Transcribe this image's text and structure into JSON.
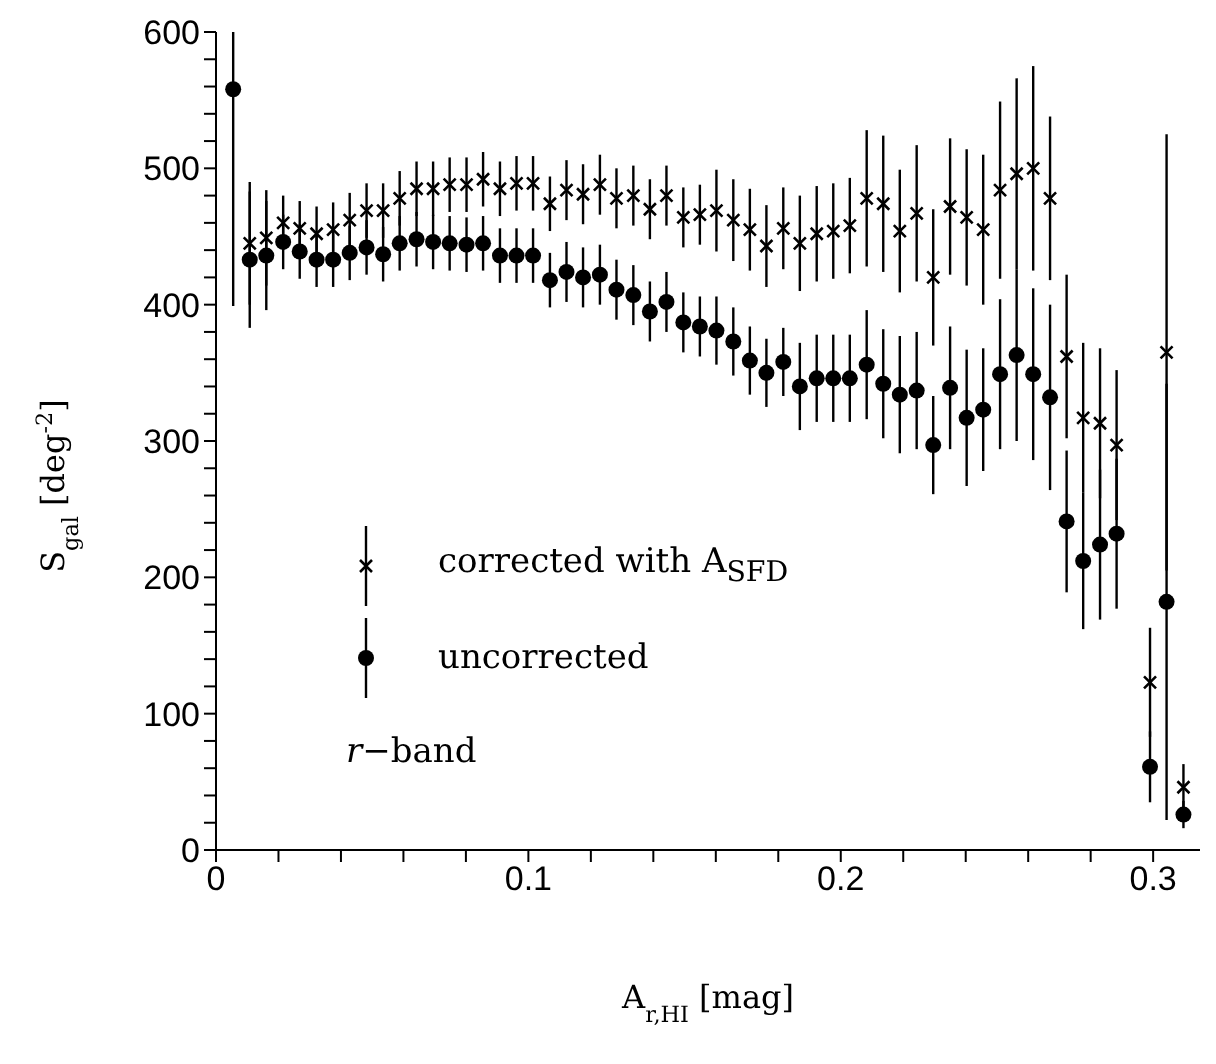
{
  "chart_data": {
    "type": "scatter",
    "xlabel": "A$_{r,HI}$ [mag]",
    "ylabel": "S$_{gal}$ [deg$^{-2}$]",
    "x": [
      0.0055,
      0.0108,
      0.0161,
      0.0215,
      0.0268,
      0.0322,
      0.0375,
      0.0428,
      0.0482,
      0.0535,
      0.0588,
      0.0642,
      0.0695,
      0.0748,
      0.0802,
      0.0855,
      0.0909,
      0.0962,
      0.1015,
      0.1069,
      0.1122,
      0.1175,
      0.1229,
      0.1282,
      0.1336,
      0.1389,
      0.1442,
      0.1496,
      0.1549,
      0.1602,
      0.1656,
      0.1709,
      0.1762,
      0.1816,
      0.1869,
      0.1923,
      0.1976,
      0.2029,
      0.2083,
      0.2136,
      0.2189,
      0.2243,
      0.2296,
      0.235,
      0.2403,
      0.2456,
      0.251,
      0.2563,
      0.2616,
      0.267,
      0.2723,
      0.2776,
      0.283,
      0.2883,
      0.299,
      0.3043,
      0.3097
    ],
    "series": [
      {
        "name": "corrected with A$_{SFD}$",
        "color": "#000000",
        "marker": "cross",
        "values": [
          null,
          445,
          449,
          460,
          456,
          452,
          455,
          462,
          469,
          469,
          478,
          485,
          485,
          488,
          488,
          492,
          485,
          489,
          489,
          474,
          484,
          481,
          488,
          478,
          480,
          470,
          480,
          464,
          466,
          469,
          462,
          455,
          443,
          456,
          445,
          452,
          454,
          458,
          478,
          474,
          454,
          467,
          420,
          472,
          464,
          455,
          484,
          496,
          500,
          478,
          362,
          317,
          313,
          297,
          123,
          365,
          46
        ],
        "errors": [
          null,
          45,
          35,
          20,
          20,
          20,
          20,
          20,
          20,
          20,
          20,
          20,
          20,
          20,
          20,
          20,
          20,
          20,
          20,
          20,
          22,
          22,
          22,
          22,
          22,
          22,
          22,
          22,
          22,
          30,
          30,
          30,
          30,
          30,
          35,
          35,
          35,
          35,
          50,
          50,
          45,
          50,
          50,
          50,
          50,
          55,
          65,
          70,
          75,
          60,
          60,
          55,
          55,
          55,
          40,
          160,
          17
        ]
      },
      {
        "name": "uncorrected",
        "color": "#000000",
        "marker": "circle",
        "values": [
          558,
          433,
          436,
          446,
          439,
          433,
          433,
          438,
          442,
          437,
          445,
          448,
          446,
          445,
          444,
          445,
          436,
          436,
          436,
          418,
          424,
          420,
          422,
          411,
          407,
          395,
          402,
          387,
          384,
          381,
          373,
          359,
          350,
          358,
          340,
          346,
          346,
          346,
          356,
          342,
          334,
          337,
          297,
          339,
          317,
          323,
          349,
          363,
          349,
          332,
          241,
          212,
          224,
          232,
          61,
          182,
          26
        ],
        "errors": [
          [
            399,
            600
          ],
          50,
          40,
          20,
          20,
          20,
          20,
          20,
          20,
          20,
          20,
          20,
          20,
          20,
          20,
          20,
          20,
          20,
          20,
          20,
          22,
          22,
          22,
          22,
          22,
          22,
          22,
          22,
          22,
          25,
          25,
          25,
          25,
          25,
          32,
          32,
          32,
          32,
          40,
          40,
          43,
          43,
          36,
          45,
          50,
          45,
          55,
          63,
          63,
          68,
          52,
          50,
          55,
          55,
          26,
          160,
          10
        ]
      }
    ],
    "annotations": [
      "r−band"
    ],
    "legend": "bottom left",
    "grid": false,
    "xlim": [
      0,
      0.315
    ],
    "xticks": [
      0,
      {
        "value": 0.02,
        "label": null
      },
      {
        "value": 0.04,
        "label": null
      },
      {
        "value": 0.06,
        "label": null
      },
      {
        "value": 0.08,
        "label": null
      },
      0.1,
      {
        "value": 0.12,
        "label": null
      },
      {
        "value": 0.14,
        "label": null
      },
      {
        "value": 0.16,
        "label": null
      },
      {
        "value": 0.18,
        "label": null
      },
      0.2,
      {
        "value": 0.22,
        "label": null
      },
      {
        "value": 0.24,
        "label": null
      },
      {
        "value": 0.26,
        "label": null
      },
      {
        "value": 0.28,
        "label": null
      },
      0.3
    ],
    "ylim": [
      0,
      600
    ],
    "yticks": [
      0,
      {
        "value": 20,
        "label": null
      },
      {
        "value": 40,
        "label": null
      },
      {
        "value": 60,
        "label": null
      },
      {
        "value": 80,
        "label": null
      },
      100,
      {
        "value": 120,
        "label": null
      },
      {
        "value": 140,
        "label": null
      },
      {
        "value": 160,
        "label": null
      },
      {
        "value": 180,
        "label": null
      },
      200,
      {
        "value": 220,
        "label": null
      },
      {
        "value": 240,
        "label": null
      },
      {
        "value": 260,
        "label": null
      },
      {
        "value": 280,
        "label": null
      },
      300,
      {
        "value": 320,
        "label": null
      },
      {
        "value": 340,
        "label": null
      },
      {
        "value": 360,
        "label": null
      },
      {
        "value": 380,
        "label": null
      },
      400,
      {
        "value": 420,
        "label": null
      },
      {
        "value": 440,
        "label": null
      },
      {
        "value": 460,
        "label": null
      },
      {
        "value": 480,
        "label": null
      },
      500,
      {
        "value": 520,
        "label": null
      },
      {
        "value": 540,
        "label": null
      },
      {
        "value": 560,
        "label": null
      },
      {
        "value": 580,
        "label": null
      },
      600
    ]
  }
}
